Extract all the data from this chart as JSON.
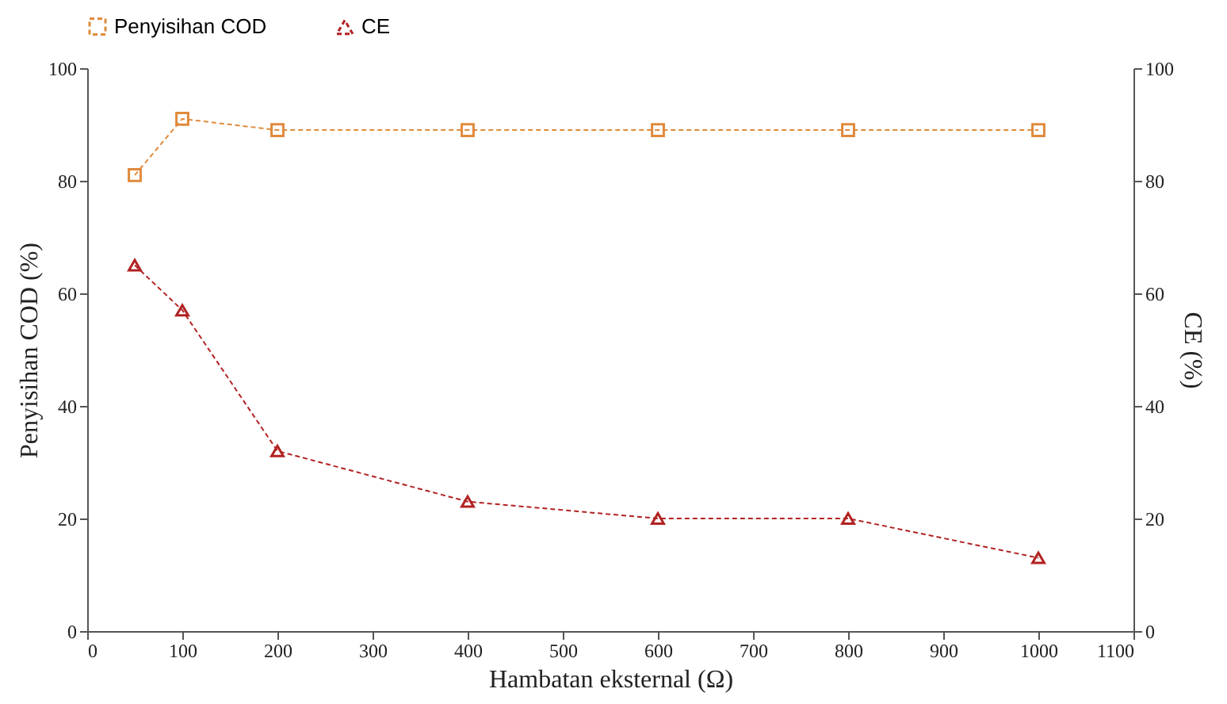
{
  "chart_data": {
    "type": "line",
    "xlabel": "Hambatan eksternal (Ω)",
    "ylabel": "Penyisihan COD (%)",
    "y2label": "CE (%)",
    "x": [
      50,
      100,
      200,
      400,
      600,
      800,
      1000
    ],
    "series": [
      {
        "name": "Penyisihan COD",
        "color": "#e08a3c",
        "marker": "square",
        "values": [
          81,
          91,
          89,
          89,
          89,
          89,
          89
        ]
      },
      {
        "name": "CE",
        "color": "#b22222",
        "marker": "triangle",
        "axis": "y2",
        "values": [
          65,
          57,
          32,
          23,
          20,
          20,
          13
        ]
      }
    ],
    "xlim": [
      0,
      1100
    ],
    "xticks": [
      0,
      100,
      200,
      300,
      400,
      500,
      600,
      700,
      800,
      900,
      1000,
      1100
    ],
    "ylim": [
      0,
      100
    ],
    "yticks": [
      0,
      20,
      40,
      60,
      80,
      100
    ],
    "y2lim": [
      0,
      100
    ],
    "y2ticks": [
      0,
      20,
      40,
      60,
      80,
      100
    ],
    "grid": false,
    "legend": "top",
    "line_style": "dashed"
  }
}
